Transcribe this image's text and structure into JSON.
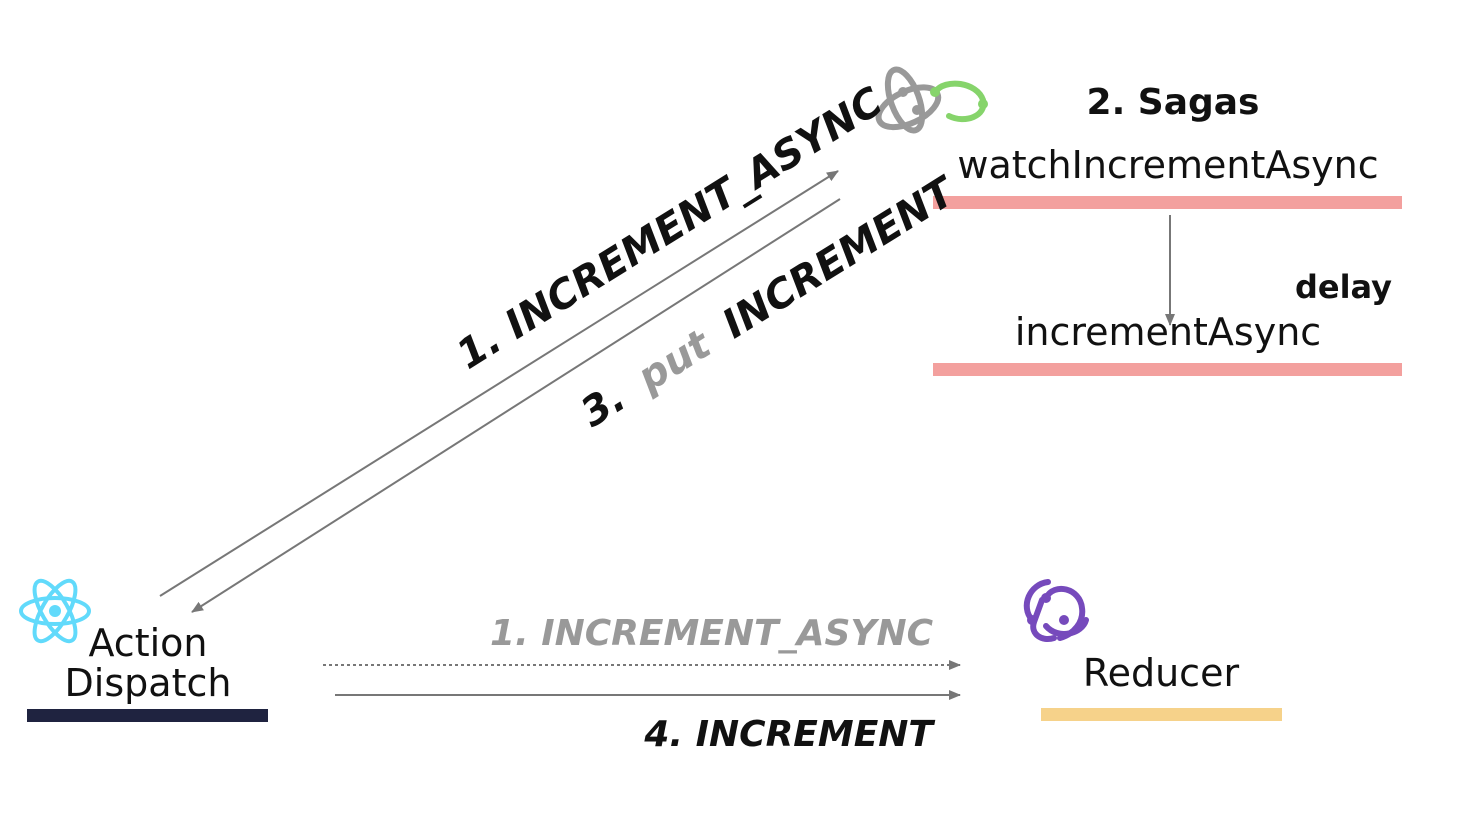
{
  "nodes": {
    "sagas": {
      "title": "2. Sagas",
      "watch_label": "watchIncrementAsync",
      "delay_label": "delay",
      "increment_label": "incrementAsync"
    },
    "action": {
      "line1": "Action",
      "line2": "Dispatch"
    },
    "reducer": {
      "label": "Reducer"
    }
  },
  "messages": {
    "step1_to_saga": "1. INCREMENT_ASYNC",
    "step3_prefix": "3.",
    "step3_put": "put",
    "step3_action": "INCREMENT",
    "step1_to_reducer": "1. INCREMENT_ASYNC",
    "step4": "4. INCREMENT"
  },
  "icons": {
    "saga_logo": "redux-saga-icon",
    "react_logo": "react-icon",
    "redux_logo": "redux-icon"
  },
  "colors": {
    "saga_bar": "#f3a09e",
    "action_bar": "#1f2340",
    "reducer_bar": "#f6d28a",
    "arrow": "#777777",
    "muted_text": "#999999",
    "react": "#61dafb",
    "redux": "#764abc",
    "saga_gray": "#999999",
    "saga_green": "#86d46b"
  }
}
